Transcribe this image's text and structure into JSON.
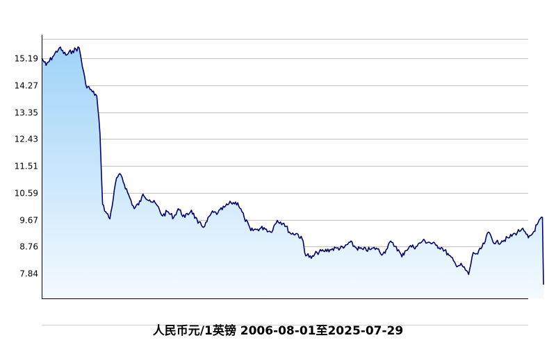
{
  "chart_data": {
    "type": "area",
    "title": "人民币元/1英镑  2006-08-01至2025-07-29",
    "x_range": [
      "2006-08-01",
      "2025-07-29"
    ],
    "y_ticks": [
      7.84,
      8.76,
      9.67,
      10.59,
      11.51,
      12.43,
      13.35,
      14.27,
      15.19
    ],
    "ylim": [
      6.98,
      16.0
    ],
    "grid": true,
    "colors": {
      "line": "#00006e",
      "fill_top": "#9fd3f8",
      "fill_bottom": "#f4faff",
      "grid": "#c0c0c0",
      "axis": "#000000"
    },
    "series": [
      {
        "x": [
          "2006-08-01",
          "2006-10-01",
          "2007-01-01",
          "2007-04-01",
          "2007-07-01",
          "2007-10-01",
          "2008-01-01",
          "2008-04-01",
          "2008-07-01",
          "2008-09-01",
          "2008-10-15",
          "2008-11-20",
          "2009-01-01",
          "2009-03-01",
          "2009-06-01",
          "2009-08-01",
          "2009-11-01",
          "2010-02-01",
          "2010-05-01",
          "2010-06-01",
          "2010-09-01",
          "2010-12-01",
          "2011-03-01",
          "2011-05-01",
          "2011-08-01",
          "2011-10-01",
          "2012-01-01",
          "2012-04-01",
          "2012-07-01",
          "2012-10-01",
          "2013-01-01",
          "2013-04-01",
          "2013-07-01",
          "2013-10-01",
          "2014-01-01",
          "2014-04-01",
          "2014-07-01",
          "2014-10-01",
          "2015-01-01",
          "2015-04-01",
          "2015-07-01",
          "2015-10-01",
          "2016-01-01",
          "2016-04-01",
          "2016-06-23",
          "2016-07-15",
          "2016-10-15",
          "2017-01-01",
          "2017-04-01",
          "2017-07-01",
          "2017-10-01",
          "2018-01-01",
          "2018-04-01",
          "2018-07-01",
          "2018-10-01",
          "2019-01-01",
          "2019-04-01",
          "2019-07-01",
          "2019-08-15",
          "2019-10-01",
          "2020-01-01",
          "2020-03-20",
          "2020-05-01",
          "2020-07-01",
          "2020-10-01",
          "2021-01-01",
          "2021-04-01",
          "2021-07-01",
          "2021-10-01",
          "2022-01-01",
          "2022-04-01",
          "2022-07-01",
          "2022-09-28",
          "2022-12-01",
          "2023-02-01",
          "2023-05-01",
          "2023-07-01",
          "2023-10-01",
          "2024-01-01",
          "2024-04-01",
          "2024-07-01",
          "2024-10-01",
          "2025-01-01",
          "2025-03-01",
          "2025-05-01",
          "2025-07-15",
          "2025-07-29"
        ],
        "values": [
          15.2,
          14.95,
          15.25,
          15.55,
          15.3,
          15.45,
          15.55,
          14.3,
          14.05,
          13.9,
          12.6,
          10.2,
          9.95,
          9.7,
          11.1,
          11.2,
          10.6,
          10.05,
          10.3,
          10.55,
          10.35,
          10.2,
          9.8,
          9.95,
          9.75,
          10.05,
          9.75,
          10.0,
          9.55,
          9.45,
          9.9,
          9.9,
          10.1,
          10.25,
          10.25,
          9.75,
          9.3,
          9.35,
          9.4,
          9.25,
          9.65,
          9.55,
          9.2,
          9.2,
          8.95,
          8.55,
          8.35,
          8.55,
          8.6,
          8.65,
          8.7,
          8.7,
          8.9,
          8.7,
          8.65,
          8.65,
          8.7,
          8.5,
          8.65,
          8.9,
          8.75,
          8.4,
          8.6,
          8.75,
          8.75,
          8.95,
          8.9,
          8.8,
          8.7,
          8.45,
          8.15,
          8.1,
          7.8,
          8.55,
          8.5,
          8.85,
          9.25,
          8.85,
          8.95,
          9.05,
          9.2,
          9.35,
          9.05,
          9.2,
          9.5,
          9.75,
          7.45
        ]
      }
    ]
  }
}
